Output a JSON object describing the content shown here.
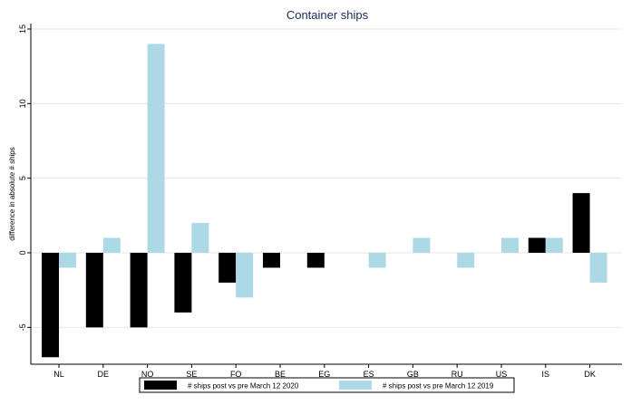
{
  "chart_data": {
    "type": "bar",
    "title": "Container ships",
    "xlabel": "",
    "ylabel": "difference in absolute # ships",
    "categories": [
      "NL",
      "DE",
      "NO",
      "SE",
      "FO",
      "BE",
      "EG",
      "ES",
      "GB",
      "RU",
      "US",
      "IS",
      "DK"
    ],
    "series": [
      {
        "name": "# ships post vs pre March 12 2020",
        "color": "#000000",
        "values": [
          -7,
          -5,
          -5,
          -4,
          -2,
          -1,
          -1,
          0,
          0,
          0,
          0,
          1,
          4
        ]
      },
      {
        "name": "# ships post vs pre March 12 2019",
        "color": "#add8e6",
        "values": [
          -1,
          1,
          14,
          2,
          -3,
          0,
          0,
          -1,
          1,
          -1,
          1,
          1,
          -2
        ]
      }
    ],
    "yticks": [
      15,
      10,
      5,
      0,
      -5
    ],
    "ytick_labels": [
      "15",
      "10",
      "5",
      "0",
      "-5"
    ],
    "ylim": [
      -7.5,
      15
    ],
    "grid": "horizontal",
    "legend_position": "bottom"
  }
}
